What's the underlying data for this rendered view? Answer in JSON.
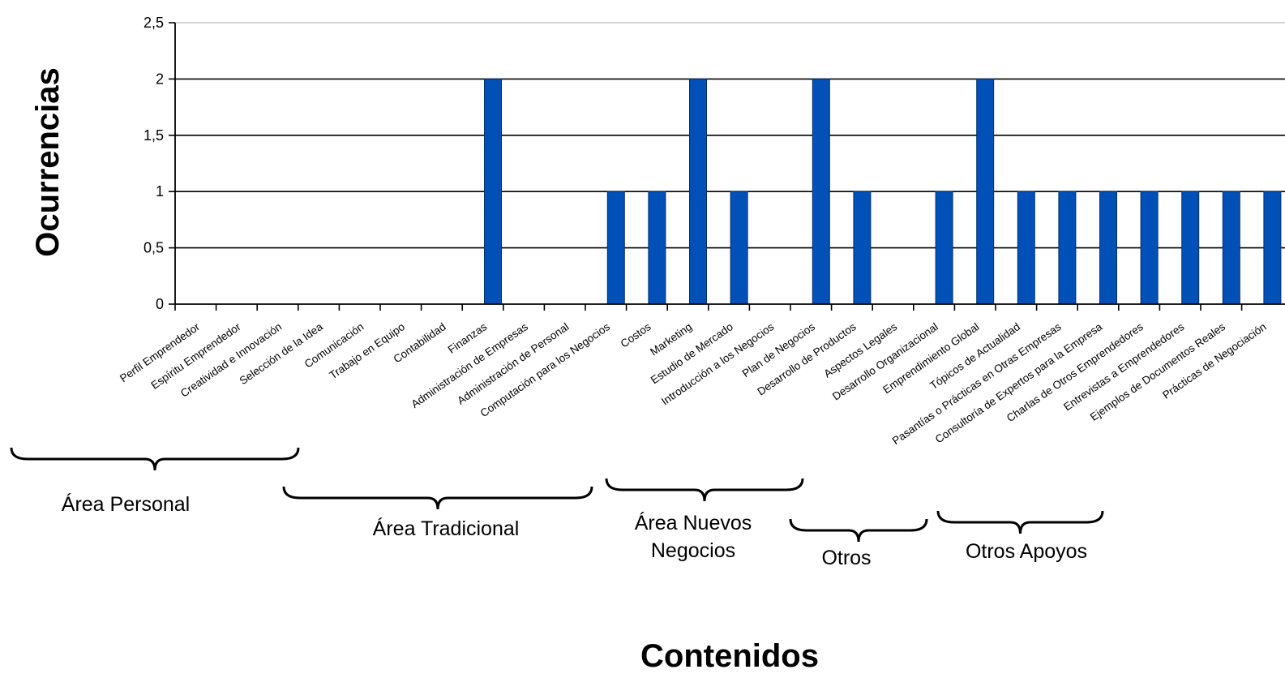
{
  "chart_data": {
    "type": "bar",
    "title": "",
    "xlabel": "Contenidos",
    "ylabel": "Ocurrencias",
    "ylim": [
      0,
      2.5
    ],
    "yticks": [
      "0",
      "0,5",
      "1",
      "1,5",
      "2",
      "2,5"
    ],
    "grid": true,
    "bar_color": "#0050b8",
    "categories": [
      "Perfil Emprendedor",
      "Espíritu Emprendedor",
      "Creatividad e Innovación",
      "Selección de la Idea",
      "Comunicación",
      "Trabajo en Equipo",
      "Contabilidad",
      "Finanzas",
      "Administración de Empresas",
      "Administración de Personal",
      "Computación para los Negocios",
      "Costos",
      "Marketing",
      "Estudio de Mercado",
      "Introducción a los Negocios",
      "Plan de Negocios",
      "Desarrollo de Productos",
      "Aspectos Legales",
      "Desarrollo Organizacional",
      "Emprendimiento Global",
      "Tópicos de Actualidad",
      "Pasantías o Prácticas en Otras Empresas",
      "Consultoría de Expertos para la Empresa",
      "Charlas de Otros Emprendedores",
      "Entrevistas a Emprendedores",
      "Ejemplos de Documentos Reales",
      "Prácticas de Negociación"
    ],
    "values": [
      0,
      0,
      0,
      0,
      0,
      0,
      0,
      2,
      0,
      0,
      1,
      1,
      2,
      1,
      0,
      2,
      1,
      0,
      1,
      2,
      1,
      1,
      1,
      1,
      1,
      1,
      1
    ],
    "groups": [
      {
        "lines": [
          "Área Personal"
        ]
      },
      {
        "lines": [
          "Área Tradicional"
        ]
      },
      {
        "lines": [
          "Área Nuevos",
          "Negocios"
        ]
      },
      {
        "lines": [
          "Otros"
        ]
      },
      {
        "lines": [
          "Otros Apoyos"
        ]
      }
    ]
  }
}
